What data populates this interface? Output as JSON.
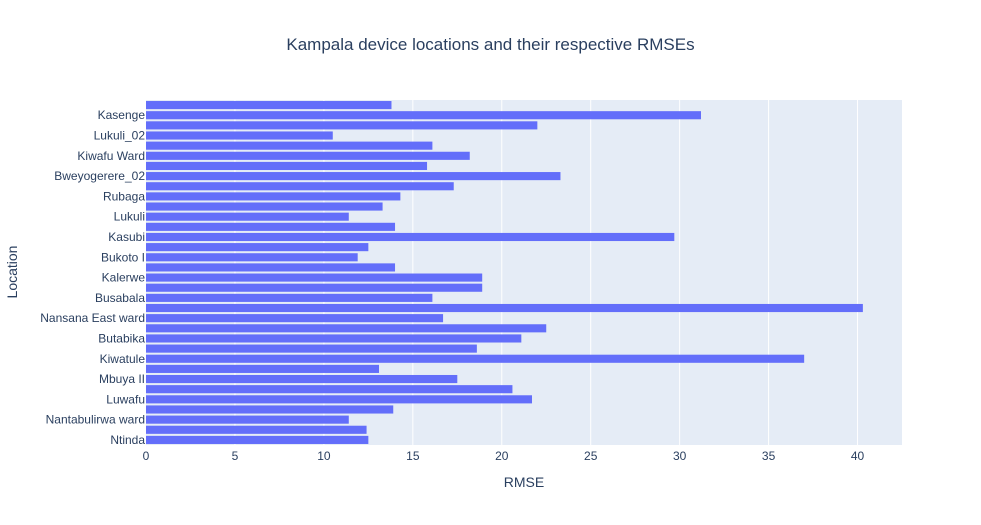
{
  "chart_data": {
    "type": "bar",
    "orientation": "horizontal",
    "title": "Kampala device locations and their respective RMSEs",
    "xlabel": "RMSE",
    "ylabel": "Location",
    "xlim": [
      0,
      42.5
    ],
    "xticks": [
      0,
      5,
      10,
      15,
      20,
      25,
      30,
      35,
      40
    ],
    "grid": true,
    "colors": {
      "bar": "#636efa",
      "plot_bg": "#e5ecf6",
      "grid": "#ffffff",
      "text": "#2a3f5f"
    },
    "categories": [
      "Ntinda",
      "",
      "Nantabulirwa ward",
      "",
      "Luwafu",
      "",
      "Mbuya II",
      "",
      "Kiwatule",
      "",
      "Butabika",
      "",
      "Nansana East ward",
      "",
      "Busabala",
      "",
      "Kalerwe",
      "",
      "Bukoto I",
      "",
      "Kasubi",
      "",
      "Lukuli",
      "",
      "Rubaga",
      "",
      "Bweyogerere_02",
      "",
      "Kiwafu Ward",
      "",
      "Lukuli_02",
      "",
      "Kasenge",
      ""
    ],
    "values": [
      12.5,
      12.4,
      11.4,
      13.9,
      21.7,
      20.6,
      17.5,
      13.1,
      37.0,
      18.6,
      21.1,
      22.5,
      16.7,
      40.3,
      16.1,
      18.9,
      18.9,
      14.0,
      11.9,
      12.5,
      29.7,
      14.0,
      11.4,
      13.3,
      14.3,
      17.3,
      23.3,
      15.8,
      18.2,
      16.1,
      10.5,
      22.0,
      31.2,
      13.8
    ]
  }
}
